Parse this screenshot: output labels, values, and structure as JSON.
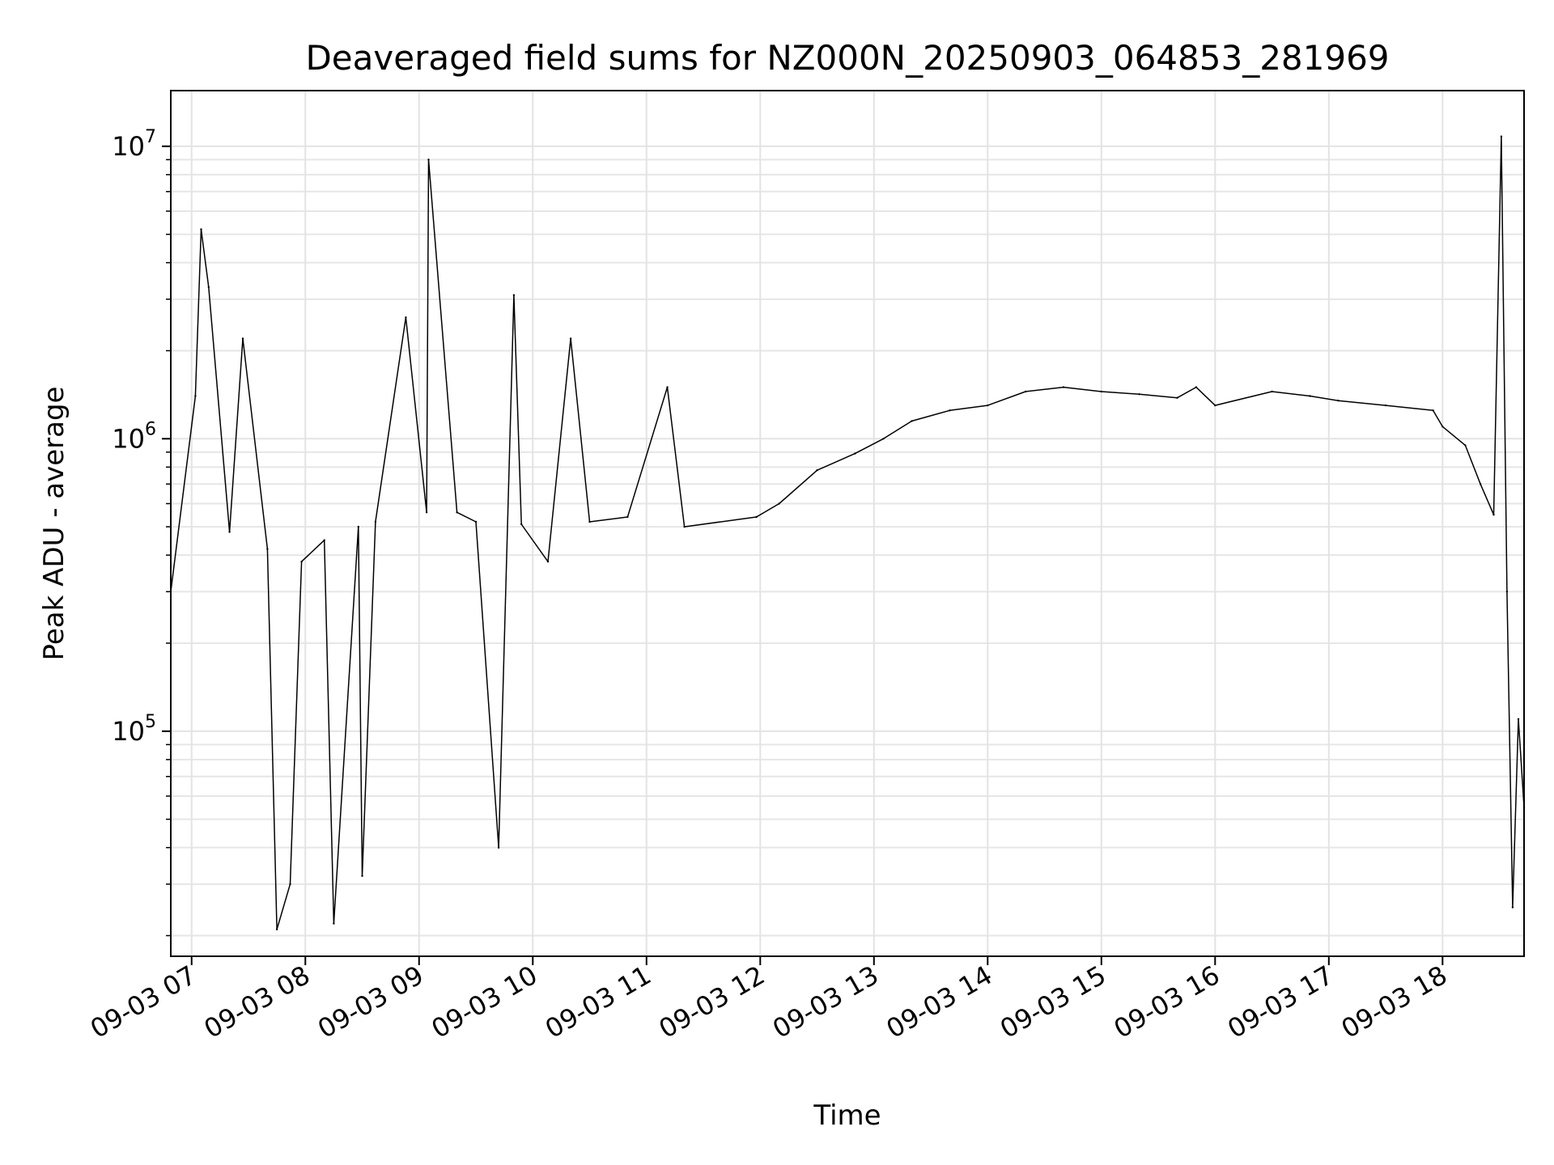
{
  "chart_data": {
    "type": "line",
    "title": "Deaveraged field sums for NZ000N_20250903_064853_281969",
    "xlabel": "Time",
    "ylabel": "Peak ADU - average",
    "yscale": "log",
    "ylim": [
      17000,
      15500000
    ],
    "xlim": [
      "09-03 06:49",
      "09-03 18:43"
    ],
    "x_ticks": [
      "09-03 07",
      "09-03 08",
      "09-03 09",
      "09-03 10",
      "09-03 11",
      "09-03 12",
      "09-03 13",
      "09-03 14",
      "09-03 15",
      "09-03 16",
      "09-03 17",
      "09-03 18"
    ],
    "y_ticks": [
      {
        "value": 100000,
        "base": "10",
        "exp": "5"
      },
      {
        "value": 1000000,
        "base": "10",
        "exp": "6"
      },
      {
        "value": 10000000,
        "base": "10",
        "exp": "7"
      }
    ],
    "grid": true,
    "line_color": "#000000",
    "series": [
      {
        "x": [
          "09-03 06:49",
          "09-03 07:02",
          "09-03 07:05",
          "09-03 07:09",
          "09-03 07:20",
          "09-03 07:27",
          "09-03 07:40",
          "09-03 07:45",
          "09-03 07:52",
          "09-03 07:58",
          "09-03 08:10",
          "09-03 08:15",
          "09-03 08:28",
          "09-03 08:30",
          "09-03 08:37",
          "09-03 08:53",
          "09-03 09:04",
          "09-03 09:05",
          "09-03 09:20",
          "09-03 09:30",
          "09-03 09:42",
          "09-03 09:50",
          "09-03 09:54",
          "09-03 10:08",
          "09-03 10:20",
          "09-03 10:30",
          "09-03 10:50",
          "09-03 11:11",
          "09-03 11:20",
          "09-03 11:58",
          "09-03 12:10",
          "09-03 12:30",
          "09-03 12:50",
          "09-03 13:05",
          "09-03 13:20",
          "09-03 13:40",
          "09-03 14:00",
          "09-03 14:20",
          "09-03 14:40",
          "09-03 15:00",
          "09-03 15:20",
          "09-03 15:40",
          "09-03 15:50",
          "09-03 16:00",
          "09-03 16:30",
          "09-03 16:50",
          "09-03 17:05",
          "09-03 17:30",
          "09-03 17:55",
          "09-03 18:00",
          "09-03 18:12",
          "09-03 18:20",
          "09-03 18:27",
          "09-03 18:31",
          "09-03 18:34",
          "09-03 18:37",
          "09-03 18:40",
          "09-03 18:43"
        ],
        "y": [
          300000,
          1400000,
          5200000,
          3300000,
          480000,
          2200000,
          420000,
          21000,
          30000,
          380000,
          450000,
          22000,
          500000,
          32000,
          520000,
          2600000,
          560000,
          9000000,
          560000,
          520000,
          40000,
          3100000,
          510000,
          380000,
          2200000,
          520000,
          540000,
          1500000,
          500000,
          540000,
          600000,
          780000,
          890000,
          1000000,
          1150000,
          1250000,
          1300000,
          1450000,
          1500000,
          1450000,
          1420000,
          1380000,
          1500000,
          1300000,
          1450000,
          1400000,
          1350000,
          1300000,
          1250000,
          1100000,
          950000,
          700000,
          550000,
          10800000,
          300000,
          25000,
          110000,
          55000
        ]
      }
    ]
  }
}
